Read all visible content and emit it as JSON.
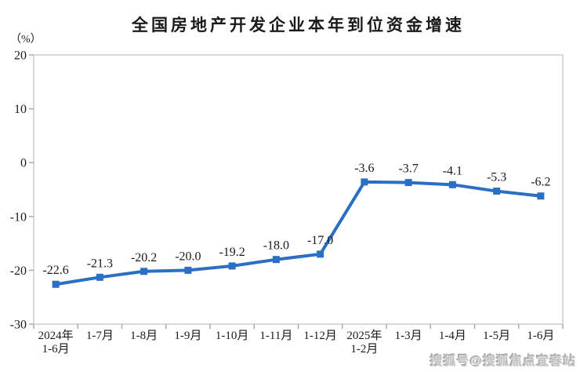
{
  "chart_data": {
    "type": "line",
    "title": "全国房地产开发企业本年到位资金增速",
    "unit": "（%）",
    "categories": [
      [
        "2024年",
        "1-6月"
      ],
      [
        "1-7月"
      ],
      [
        "1-8月"
      ],
      [
        "1-9月"
      ],
      [
        "1-10月"
      ],
      [
        "1-11月"
      ],
      [
        "1-12月"
      ],
      [
        "2025年",
        "1-2月"
      ],
      [
        "1-3月"
      ],
      [
        "1-4月"
      ],
      [
        "1-5月"
      ],
      [
        "1-6月"
      ]
    ],
    "values": [
      -22.6,
      -21.3,
      -20.2,
      -20.0,
      -19.2,
      -18.0,
      -17.0,
      -3.6,
      -3.7,
      -4.1,
      -5.3,
      -6.2
    ],
    "data_labels": [
      "-22.6",
      "-21.3",
      "-20.2",
      "-20.0",
      "-19.2",
      "-18.0",
      "-17.0",
      "-3.6",
      "-3.7",
      "-4.1",
      "-5.3",
      "-6.2"
    ],
    "ylim": [
      -30,
      20
    ],
    "yticks": [
      20,
      10,
      0,
      -10,
      -20,
      -30
    ],
    "grid": false,
    "legend": "none",
    "marker": "square",
    "colors": {
      "line": "#2a6fc4",
      "plot_border": "#d9d9d9",
      "tick": "#aaaaaa",
      "text": "#1a1a1a"
    }
  },
  "watermark": "搜狐号@搜狐焦点宜春站"
}
